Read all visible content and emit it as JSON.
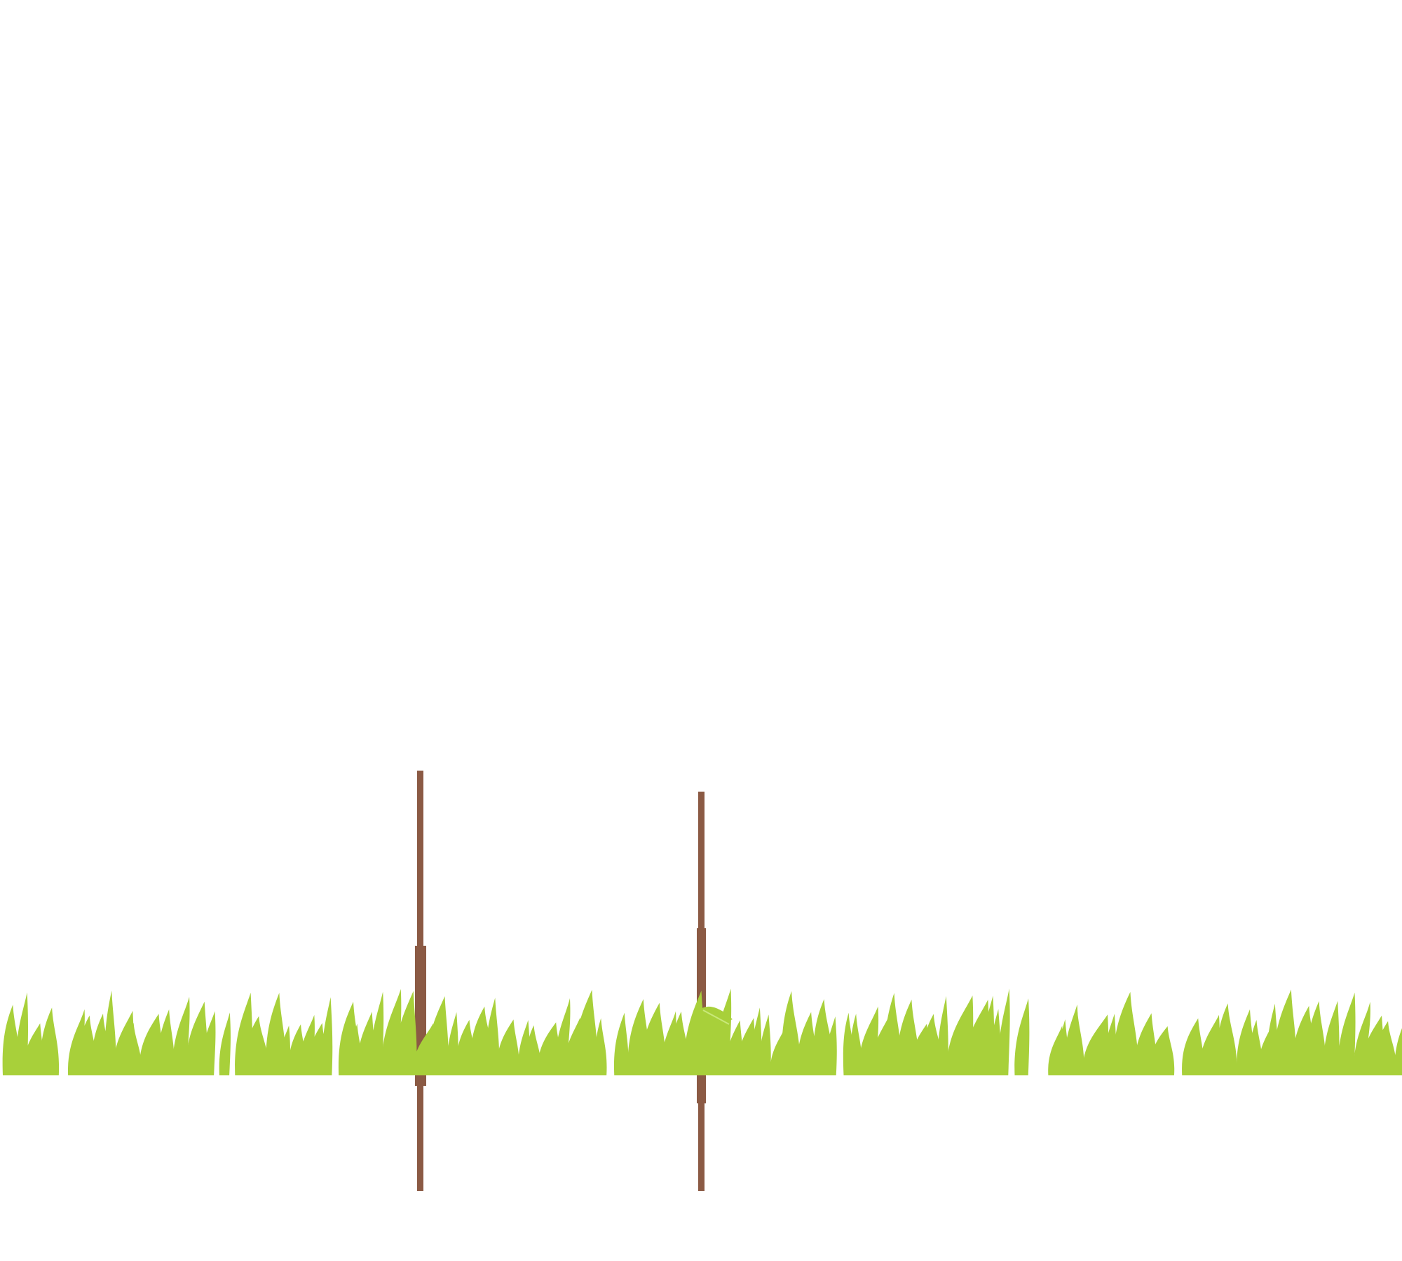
{
  "scene": {
    "background": "#ffffff",
    "grass_color": "#a8d03a",
    "stake_color": "#8b5a44",
    "elements": [
      "grass-strip",
      "wooden-stake-left",
      "wooden-stake-right",
      "sprout-leaf"
    ]
  }
}
